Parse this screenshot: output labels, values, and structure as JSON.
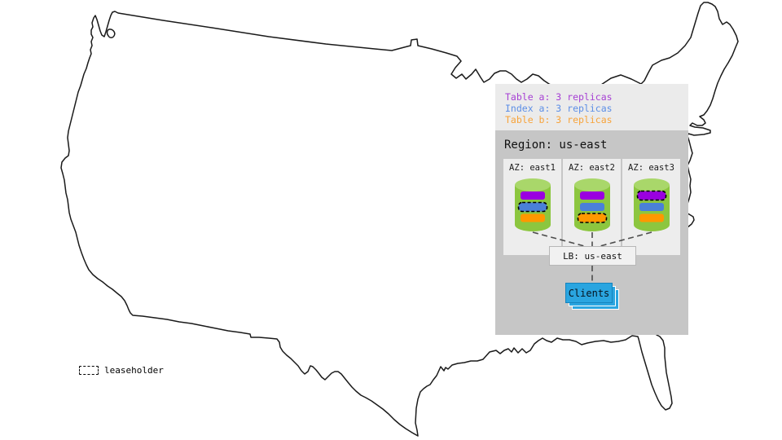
{
  "legend": {
    "items": [
      {
        "label": "Table a: 3 replicas",
        "color": "#a63fd4",
        "kind": "table_a"
      },
      {
        "label": "Index a: 3 replicas",
        "color": "#5c8ee6",
        "kind": "index_a"
      },
      {
        "label": "Table b: 3 replicas",
        "color": "#f7a33a",
        "kind": "table_b"
      }
    ]
  },
  "region": {
    "title": "Region: us-east",
    "lb_label": "LB: us-east",
    "clients_label": "Clients",
    "azs": [
      {
        "label": "AZ: east1",
        "replicas": [
          {
            "kind": "table_a",
            "leaseholder": false
          },
          {
            "kind": "index_a",
            "leaseholder": true
          },
          {
            "kind": "table_b",
            "leaseholder": false
          }
        ]
      },
      {
        "label": "AZ: east2",
        "replicas": [
          {
            "kind": "table_a",
            "leaseholder": false
          },
          {
            "kind": "index_a",
            "leaseholder": false
          },
          {
            "kind": "table_b",
            "leaseholder": true
          }
        ]
      },
      {
        "label": "AZ: east3",
        "replicas": [
          {
            "kind": "table_a",
            "leaseholder": true
          },
          {
            "kind": "index_a",
            "leaseholder": false
          },
          {
            "kind": "table_b",
            "leaseholder": false
          }
        ]
      }
    ]
  },
  "map_key": {
    "leaseholder_label": "leaseholder"
  },
  "colors": {
    "table_a": "#9a00e0",
    "index_a": "#4a80d8",
    "table_b": "#ff9800",
    "cylinder_body": "#8cc63f",
    "cylinder_top": "#a9d76a",
    "panel_legend_bg": "#ebebeb",
    "region_bg": "#c6c6c6",
    "az_bg": "#ededed",
    "clients_blue": "#2aa5e0",
    "map_stroke": "#1a1a1a"
  }
}
